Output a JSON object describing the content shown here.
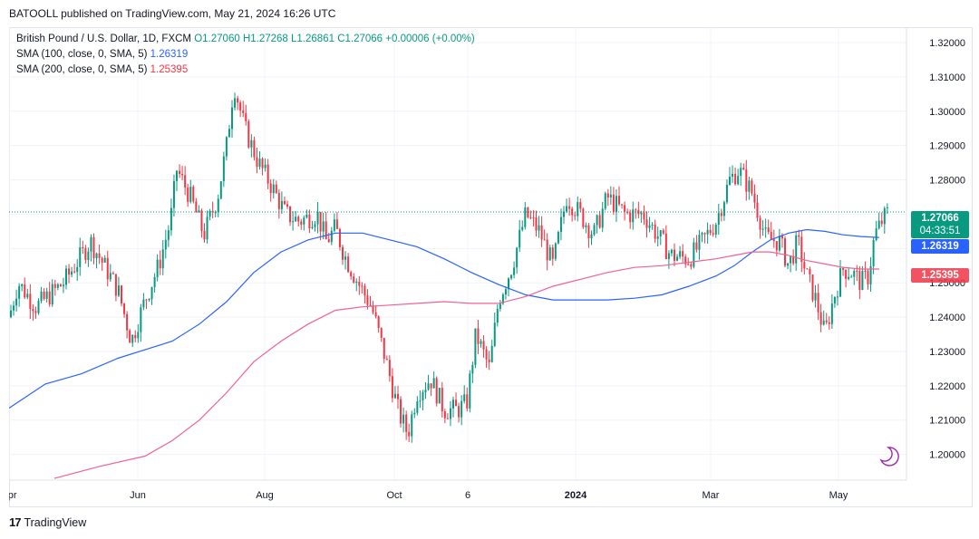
{
  "header": {
    "text": "BATOOLL published on TradingView.com, May 21, 2024 16:26 UTC"
  },
  "legend": {
    "symbol": "British Pound / U.S. Dollar, 1D, FXCM",
    "open": "O1.27060",
    "high": "H1.27268",
    "low": "L1.26861",
    "close": "C1.27066",
    "change": "+0.00006 (+0.00%)",
    "sma100_label": "SMA (100, close, 0, SMA, 5)",
    "sma100_value": "1.26319",
    "sma200_label": "SMA (200, close, 0, SMA, 5)",
    "sma200_value": "1.25395"
  },
  "price_tags": {
    "last_price": "1.27066",
    "countdown": "04:33:51",
    "sma100": "1.26319",
    "sma200": "1.25395"
  },
  "footer": {
    "logo": "17",
    "brand": "TradingView"
  },
  "colors": {
    "up": "#089981",
    "down": "#f23645",
    "sma100": "#2962ff",
    "sma200": "#f06292"
  },
  "chart_data": {
    "type": "candlestick",
    "y_ticks": [
      "1.32000",
      "1.31000",
      "1.30000",
      "1.29000",
      "1.28000",
      "1.27000",
      "1.26000",
      "1.25000",
      "1.24000",
      "1.23000",
      "1.22000",
      "1.21000",
      "1.20000"
    ],
    "ylim": [
      1.1925,
      1.3245
    ],
    "x_ticks": [
      "Apr",
      "Jun",
      "Aug",
      "Oct",
      "6",
      "2024",
      "Mar",
      "May"
    ],
    "last_price": 1.27066,
    "series": [
      {
        "name": "SMA (100, close, 0, SMA, 5)",
        "x": [
          0,
          40,
          80,
          120,
          150,
          180,
          210,
          240,
          270,
          300,
          330,
          360,
          390,
          420,
          450,
          480,
          510,
          540,
          570,
          600,
          630,
          660,
          690,
          720,
          750,
          780,
          800,
          820,
          840,
          860,
          880,
          900,
          920,
          940,
          960
        ],
        "y": [
          1.2135,
          1.2205,
          1.2235,
          1.228,
          1.2305,
          1.233,
          1.238,
          1.2445,
          1.253,
          1.259,
          1.2625,
          1.2645,
          1.2645,
          1.2625,
          1.2605,
          1.257,
          1.253,
          1.2495,
          1.2465,
          1.245,
          1.245,
          1.245,
          1.2455,
          1.2465,
          1.249,
          1.252,
          1.255,
          1.259,
          1.2625,
          1.2645,
          1.2655,
          1.265,
          1.264,
          1.2635,
          1.2632
        ]
      },
      {
        "name": "SMA (200, close, 0, SMA, 5)",
        "x": [
          50,
          100,
          150,
          180,
          210,
          240,
          270,
          300,
          330,
          360,
          390,
          420,
          450,
          480,
          510,
          540,
          570,
          600,
          630,
          660,
          690,
          720,
          750,
          780,
          800,
          820,
          840,
          860,
          880,
          900,
          920,
          940,
          960
        ],
        "y": [
          1.193,
          1.1965,
          1.1995,
          1.204,
          1.21,
          1.218,
          1.227,
          1.233,
          1.238,
          1.242,
          1.243,
          1.2435,
          1.244,
          1.2445,
          1.244,
          1.244,
          1.246,
          1.249,
          1.251,
          1.253,
          1.2545,
          1.255,
          1.256,
          1.257,
          1.258,
          1.259,
          1.259,
          1.258,
          1.2565,
          1.2555,
          1.2545,
          1.254,
          1.254
        ]
      }
    ]
  }
}
